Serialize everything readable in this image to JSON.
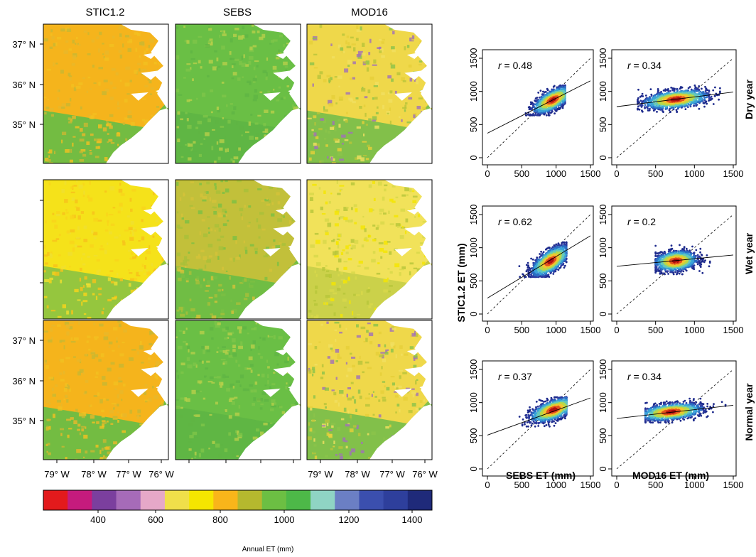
{
  "maps": {
    "columns": [
      "STIC1.2",
      "SEBS",
      "MOD16"
    ],
    "lat_labels": [
      "37° N",
      "36° N",
      "35° N"
    ],
    "lon_labels": [
      "79° W",
      "78° W",
      "77° W",
      "76° W"
    ],
    "rows": [
      {
        "id": "dry",
        "dominant": [
          "orange",
          "green",
          "mixed"
        ]
      },
      {
        "id": "wet",
        "dominant": [
          "yellow-orange",
          "olive-green",
          "yellow"
        ]
      },
      {
        "id": "normal",
        "dominant": [
          "orange",
          "green",
          "mixed"
        ]
      }
    ]
  },
  "colorbar": {
    "title": "Annual ET (mm)",
    "tick_labels": [
      "400",
      "600",
      "800",
      "1000",
      "1200",
      "1400"
    ],
    "colors": [
      "#e31a1c",
      "#c51b7d",
      "#7b3f9e",
      "#a66bb8",
      "#e6a8c8",
      "#f0df4a",
      "#f5e600",
      "#f9b51a",
      "#b5b82e",
      "#6cbf43",
      "#4db848",
      "#8fd4c4",
      "#6b7fc4",
      "#3b4fae",
      "#2e3f9c",
      "#1f2a7a"
    ]
  },
  "chart_data": [
    {
      "type": "scatter",
      "id": "dry-sebs",
      "row": "Dry year",
      "xlabel": "SEBS ET (mm)",
      "ylabel": "STIC1.2 ET (mm)",
      "xlim": [
        0,
        1500
      ],
      "ylim": [
        0,
        1500
      ],
      "xticks": [
        "0",
        "500",
        "1000",
        "1500"
      ],
      "yticks": [
        "0",
        "500",
        "1000",
        "1500"
      ],
      "r_label": "r = 0.48",
      "r": 0.48,
      "fit_line": {
        "x": [
          0,
          1500
        ],
        "y": [
          370,
          1160
        ]
      },
      "one_to_one_line": true,
      "cloud": {
        "x_range": [
          400,
          1130
        ],
        "y_range": [
          640,
          1090
        ],
        "center": [
          950,
          870
        ]
      }
    },
    {
      "type": "scatter",
      "id": "dry-mod16",
      "row": "Dry year",
      "xlabel": "MOD16 ET (mm)",
      "ylabel": "STIC1.2 ET (mm)",
      "xlim": [
        0,
        1500
      ],
      "ylim": [
        0,
        1500
      ],
      "xticks": [
        "0",
        "500",
        "1000",
        "1500"
      ],
      "yticks": [
        "0",
        "500",
        "1000",
        "1500"
      ],
      "r_label": "r = 0.34",
      "r": 0.34,
      "fit_line": {
        "x": [
          0,
          1500
        ],
        "y": [
          770,
          990
        ]
      },
      "one_to_one_line": true,
      "cloud": {
        "x_range": [
          270,
          1330
        ],
        "y_range": [
          690,
          1090
        ],
        "center": [
          760,
          880
        ]
      }
    },
    {
      "type": "scatter",
      "id": "wet-sebs",
      "row": "Wet year",
      "xlabel": "SEBS ET (mm)",
      "ylabel": "STIC1.2 ET (mm)",
      "xlim": [
        0,
        1500
      ],
      "ylim": [
        0,
        1500
      ],
      "xticks": [
        "0",
        "500",
        "1000",
        "1500"
      ],
      "yticks": [
        "0",
        "500",
        "1000",
        "1500"
      ],
      "r_label": "r = 0.62",
      "r": 0.62,
      "fit_line": {
        "x": [
          0,
          1500
        ],
        "y": [
          240,
          1180
        ]
      },
      "one_to_one_line": true,
      "cloud": {
        "x_range": [
          450,
          1150
        ],
        "y_range": [
          560,
          1080
        ],
        "center": [
          920,
          800
        ]
      }
    },
    {
      "type": "scatter",
      "id": "wet-mod16",
      "row": "Wet year",
      "xlabel": "MOD16 ET (mm)",
      "ylabel": "STIC1.2 ET (mm)",
      "xlim": [
        0,
        1500
      ],
      "ylim": [
        0,
        1500
      ],
      "xticks": [
        "0",
        "500",
        "1000",
        "1500"
      ],
      "yticks": [
        "0",
        "500",
        "1000",
        "1500"
      ],
      "r_label": "r = 0.2",
      "r": 0.2,
      "fit_line": {
        "x": [
          0,
          1500
        ],
        "y": [
          720,
          890
        ]
      },
      "one_to_one_line": true,
      "cloud": {
        "x_range": [
          500,
          1200
        ],
        "y_range": [
          600,
          1040
        ],
        "center": [
          760,
          800
        ]
      }
    },
    {
      "type": "scatter",
      "id": "normal-sebs",
      "row": "Normal year",
      "xlabel": "SEBS ET (mm)",
      "ylabel": "STIC1.2 ET (mm)",
      "xlim": [
        0,
        1500
      ],
      "ylim": [
        0,
        1500
      ],
      "xticks": [
        "0",
        "500",
        "1000",
        "1500"
      ],
      "yticks": [
        "0",
        "500",
        "1000",
        "1500"
      ],
      "r_label": "r = 0.37",
      "r": 0.37,
      "fit_line": {
        "x": [
          0,
          1500
        ],
        "y": [
          510,
          1070
        ]
      },
      "one_to_one_line": true,
      "cloud": {
        "x_range": [
          300,
          1150
        ],
        "y_range": [
          640,
          1080
        ],
        "center": [
          960,
          890
        ]
      }
    },
    {
      "type": "scatter",
      "id": "normal-mod16",
      "row": "Normal year",
      "xlabel": "MOD16 ET (mm)",
      "ylabel": "STIC1.2 ET (mm)",
      "xlim": [
        0,
        1500
      ],
      "ylim": [
        0,
        1500
      ],
      "xticks": [
        "0",
        "500",
        "1000",
        "1500"
      ],
      "yticks": [
        "0",
        "500",
        "1000",
        "1500"
      ],
      "r_label": "r = 0.34",
      "r": 0.34,
      "fit_line": {
        "x": [
          0,
          1500
        ],
        "y": [
          760,
          960
        ]
      },
      "one_to_one_line": true,
      "cloud": {
        "x_range": [
          370,
          1400
        ],
        "y_range": [
          700,
          1060
        ],
        "center": [
          700,
          860
        ]
      }
    }
  ],
  "scatter_labels": {
    "y_axis": "STIC1.2 ET (mm)",
    "x_axis_left": "SEBS ET (mm)",
    "x_axis_right": "MOD16 ET (mm)",
    "rows": [
      "Dry year",
      "Wet year",
      "Normal year"
    ]
  }
}
